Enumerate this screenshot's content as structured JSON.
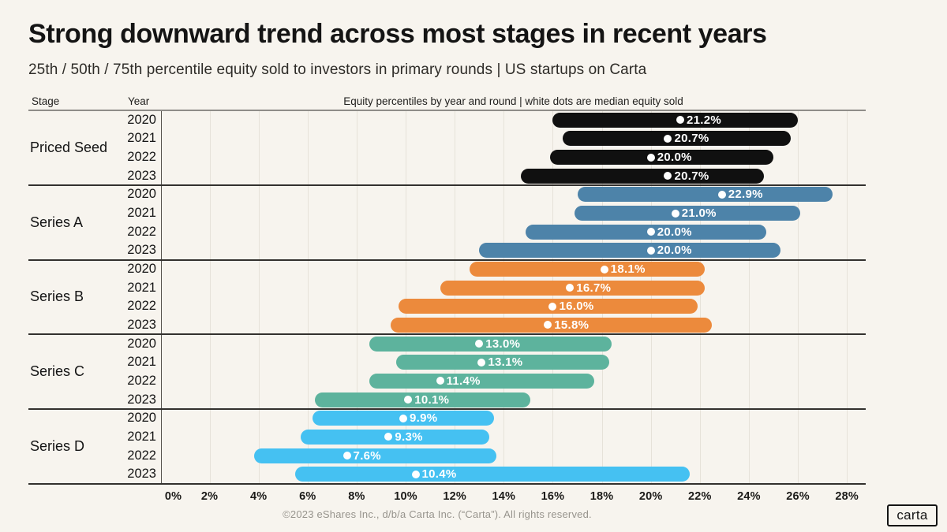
{
  "page": {
    "title": "Strong downward trend across most stages in recent years",
    "subtitle": "25th / 50th / 75th percentile equity sold to investors in primary rounds | US startups on Carta",
    "footer": "©2023 eShares Inc., d/b/a Carta Inc. (“Carta”). All rights reserved.",
    "logo_text": "carta"
  },
  "colors": {
    "background": "#f7f4ee",
    "gridline": "#e6e2d9",
    "divider": "#33312e",
    "header_line": "#8f8d89",
    "text": "#141414",
    "footer_text": "#97948d",
    "median_dot": "#ffffff"
  },
  "chart_data": {
    "type": "bar",
    "variant": "horizontal-percentile-range",
    "title": "Equity percentiles by year and round | white dots are median equity sold",
    "column_headers": {
      "stage": "Stage",
      "year": "Year"
    },
    "xlabel": "",
    "ylabel": "",
    "xlim": [
      0,
      28.7
    ],
    "x_ticks": [
      0,
      2,
      4,
      6,
      8,
      10,
      12,
      14,
      16,
      18,
      20,
      22,
      24,
      26,
      28
    ],
    "x_tick_suffix": "%",
    "grid": true,
    "legend": "none",
    "note": "each pill spans 25th to 75th percentile; white dot marks median",
    "groups": [
      {
        "stage": "Priced Seed",
        "color": "#101010",
        "rows": [
          {
            "year": "2020",
            "p25": 16.0,
            "median": 21.2,
            "p75": 26.0,
            "label": "21.2%"
          },
          {
            "year": "2021",
            "p25": 16.4,
            "median": 20.7,
            "p75": 25.7,
            "label": "20.7%"
          },
          {
            "year": "2022",
            "p25": 15.9,
            "median": 20.0,
            "p75": 25.0,
            "label": "20.0%"
          },
          {
            "year": "2023",
            "p25": 14.7,
            "median": 20.7,
            "p75": 24.6,
            "label": "20.7%"
          }
        ]
      },
      {
        "stage": "Series A",
        "color": "#4d83a9",
        "rows": [
          {
            "year": "2020",
            "p25": 17.0,
            "median": 22.9,
            "p75": 27.4,
            "label": "22.9%"
          },
          {
            "year": "2021",
            "p25": 16.9,
            "median": 21.0,
            "p75": 26.1,
            "label": "21.0%"
          },
          {
            "year": "2022",
            "p25": 14.9,
            "median": 20.0,
            "p75": 24.7,
            "label": "20.0%"
          },
          {
            "year": "2023",
            "p25": 13.0,
            "median": 20.0,
            "p75": 25.3,
            "label": "20.0%"
          }
        ]
      },
      {
        "stage": "Series B",
        "color": "#ec8a3c",
        "rows": [
          {
            "year": "2020",
            "p25": 12.6,
            "median": 18.1,
            "p75": 22.2,
            "label": "18.1%"
          },
          {
            "year": "2021",
            "p25": 11.4,
            "median": 16.7,
            "p75": 22.2,
            "label": "16.7%"
          },
          {
            "year": "2022",
            "p25": 9.7,
            "median": 16.0,
            "p75": 21.9,
            "label": "16.0%"
          },
          {
            "year": "2023",
            "p25": 9.4,
            "median": 15.8,
            "p75": 22.5,
            "label": "15.8%"
          }
        ]
      },
      {
        "stage": "Series C",
        "color": "#5db39d",
        "rows": [
          {
            "year": "2020",
            "p25": 8.5,
            "median": 13.0,
            "p75": 18.4,
            "label": "13.0%"
          },
          {
            "year": "2021",
            "p25": 9.6,
            "median": 13.1,
            "p75": 18.3,
            "label": "13.1%"
          },
          {
            "year": "2022",
            "p25": 8.5,
            "median": 11.4,
            "p75": 17.7,
            "label": "11.4%"
          },
          {
            "year": "2023",
            "p25": 6.3,
            "median": 10.1,
            "p75": 15.1,
            "label": "10.1%"
          }
        ]
      },
      {
        "stage": "Series D",
        "color": "#45c1f2",
        "rows": [
          {
            "year": "2020",
            "p25": 6.2,
            "median": 9.9,
            "p75": 13.6,
            "label": "9.9%"
          },
          {
            "year": "2021",
            "p25": 5.7,
            "median": 9.3,
            "p75": 13.4,
            "label": "9.3%"
          },
          {
            "year": "2022",
            "p25": 3.8,
            "median": 7.6,
            "p75": 13.7,
            "label": "7.6%"
          },
          {
            "year": "2023",
            "p25": 5.5,
            "median": 10.4,
            "p75": 21.6,
            "label": "10.4%"
          }
        ]
      }
    ]
  }
}
